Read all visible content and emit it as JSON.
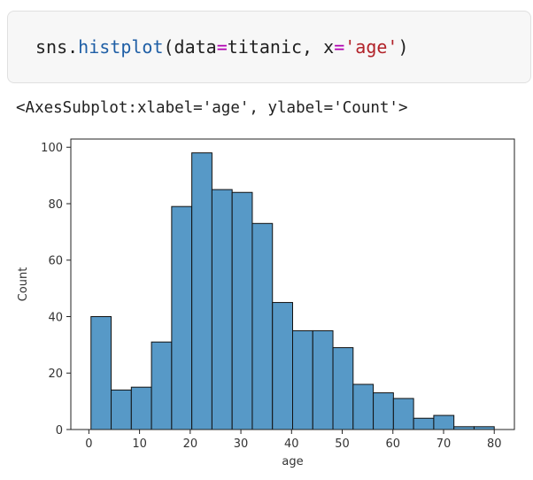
{
  "code_cell": {
    "tokens": [
      {
        "text": "sns."
      },
      {
        "text": "histplot",
        "color": "#1f5fa6"
      },
      {
        "text": "(data"
      },
      {
        "text": "=",
        "color": "#b000b0"
      },
      {
        "text": "titanic, x"
      },
      {
        "text": "=",
        "color": "#b000b0"
      },
      {
        "text": "'age'",
        "color": "#b2232a"
      },
      {
        "text": ")"
      }
    ]
  },
  "output_text": "<AxesSubplot:xlabel='age', ylabel='Count'>",
  "chart_data": {
    "type": "histogram",
    "xlabel": "age",
    "ylabel": "Count",
    "bins": [
      0.42,
      4.399,
      8.378,
      12.357,
      16.336,
      20.315,
      24.294,
      28.273,
      32.252,
      36.231,
      40.21,
      44.189,
      48.168,
      52.147,
      56.126,
      60.105,
      64.084,
      68.063,
      72.042,
      76.021,
      80.0
    ],
    "values": [
      40,
      14,
      15,
      31,
      79,
      98,
      85,
      84,
      73,
      45,
      35,
      35,
      29,
      16,
      13,
      11,
      4,
      5,
      1,
      1
    ],
    "color": "#5799c7",
    "xlim": [
      -3.56,
      83.98
    ],
    "xticks": [
      0,
      10,
      20,
      30,
      40,
      50,
      60,
      70,
      80
    ],
    "ylim": [
      0,
      102.9
    ],
    "yticks": [
      0,
      20,
      40,
      60,
      80,
      100
    ]
  }
}
